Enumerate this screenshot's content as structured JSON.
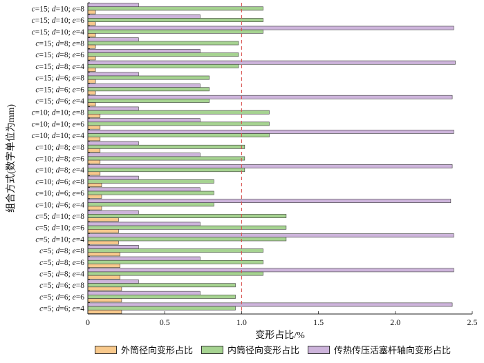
{
  "chart_data": {
    "type": "bar",
    "orientation": "horizontal",
    "xlabel": "变形占比/%",
    "ylabel": "组合方式(数字单位为mm)",
    "xlim": [
      0,
      2.5
    ],
    "xticks": [
      "0",
      "0.5",
      "1.0",
      "1.5",
      "2.0",
      "2.5"
    ],
    "reference_line": {
      "x": 1.0,
      "style": "dashed",
      "color": "#d9534f"
    },
    "grid": false,
    "legend_position": "bottom",
    "categories": [
      "c=15; d=10; e=8",
      "c=15; d=10; e=6",
      "c=15; d=10; e=4",
      "c=15; d=8; e=8",
      "c=15; d=8; e=6",
      "c=15; d=8; e=4",
      "c=15; d=6; e=8",
      "c=15; d=6; e=6",
      "c=15; d=6; e=4",
      "c=10; d=10; e=8",
      "c=10; d=10; e=6",
      "c=10; d=10; e=4",
      "c=10; d=8; e=8",
      "c=10; d=8; e=6",
      "c=10; d=8; e=4",
      "c=10; d=6; e=8",
      "c=10; d=6; e=6",
      "c=10; d=6; e=4",
      "c=5; d=10; e=8",
      "c=5; d=10; e=6",
      "c=5; d=10; e=4",
      "c=5; d=8; e=8",
      "c=5; d=8; e=6",
      "c=5; d=8; e=4",
      "c=5; d=6; e=8",
      "c=5; d=6; e=6",
      "c=5; d=6; e=4"
    ],
    "series": [
      {
        "name": "外筒径向变形占比",
        "color": "#f8c98c",
        "values": [
          0.05,
          0.05,
          0.05,
          0.05,
          0.05,
          0.05,
          0.05,
          0.05,
          0.05,
          0.08,
          0.08,
          0.08,
          0.08,
          0.08,
          0.08,
          0.09,
          0.09,
          0.09,
          0.2,
          0.2,
          0.2,
          0.21,
          0.21,
          0.21,
          0.22,
          0.22,
          0.22
        ]
      },
      {
        "name": "内筒径向变形占比",
        "color": "#a6d391",
        "values": [
          1.14,
          1.14,
          1.14,
          0.98,
          0.98,
          0.98,
          0.79,
          0.79,
          0.79,
          1.18,
          1.18,
          1.18,
          1.02,
          1.02,
          1.02,
          0.82,
          0.82,
          0.82,
          1.29,
          1.29,
          1.29,
          1.14,
          1.14,
          1.14,
          0.96,
          0.96,
          0.96
        ]
      },
      {
        "name": "传热传压活塞杆轴向变形占比",
        "color": "#cdb4db",
        "values": [
          0.33,
          0.73,
          2.38,
          0.33,
          0.73,
          2.39,
          0.33,
          0.73,
          2.37,
          0.33,
          0.73,
          2.38,
          0.33,
          0.73,
          2.37,
          0.33,
          0.73,
          2.36,
          0.33,
          0.73,
          2.38,
          0.33,
          0.73,
          2.38,
          0.33,
          0.73,
          2.37
        ]
      }
    ]
  }
}
